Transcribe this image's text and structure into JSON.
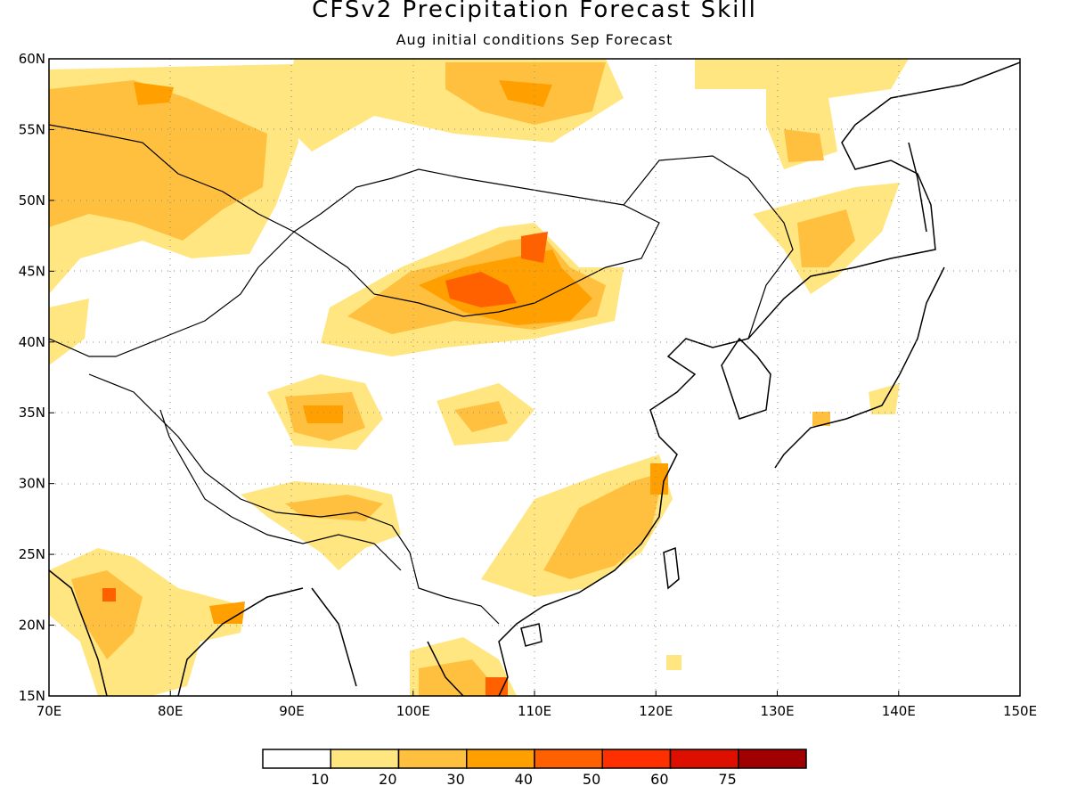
{
  "title": "CFSv2 Precipitation Forecast Skill",
  "subtitle": "Aug initial conditions  Sep Forecast",
  "map": {
    "lon_range": [
      70,
      150
    ],
    "lat_range": [
      15,
      60
    ],
    "grid": true,
    "lon_ticks": [
      "70E",
      "80E",
      "90E",
      "100E",
      "110E",
      "120E",
      "130E",
      "140E",
      "150E"
    ],
    "lat_ticks": [
      "60N",
      "55N",
      "50N",
      "45N",
      "40N",
      "35N",
      "30N",
      "25N",
      "20N",
      "15N"
    ]
  },
  "colorbar": {
    "labels": [
      "10",
      "20",
      "30",
      "40",
      "50",
      "60",
      "75"
    ],
    "colors": [
      "#ffffff",
      "#ffe680",
      "#ffc040",
      "#ffa000",
      "#ff6000",
      "#ff3000",
      "#dd1000",
      "#a00000"
    ]
  }
}
